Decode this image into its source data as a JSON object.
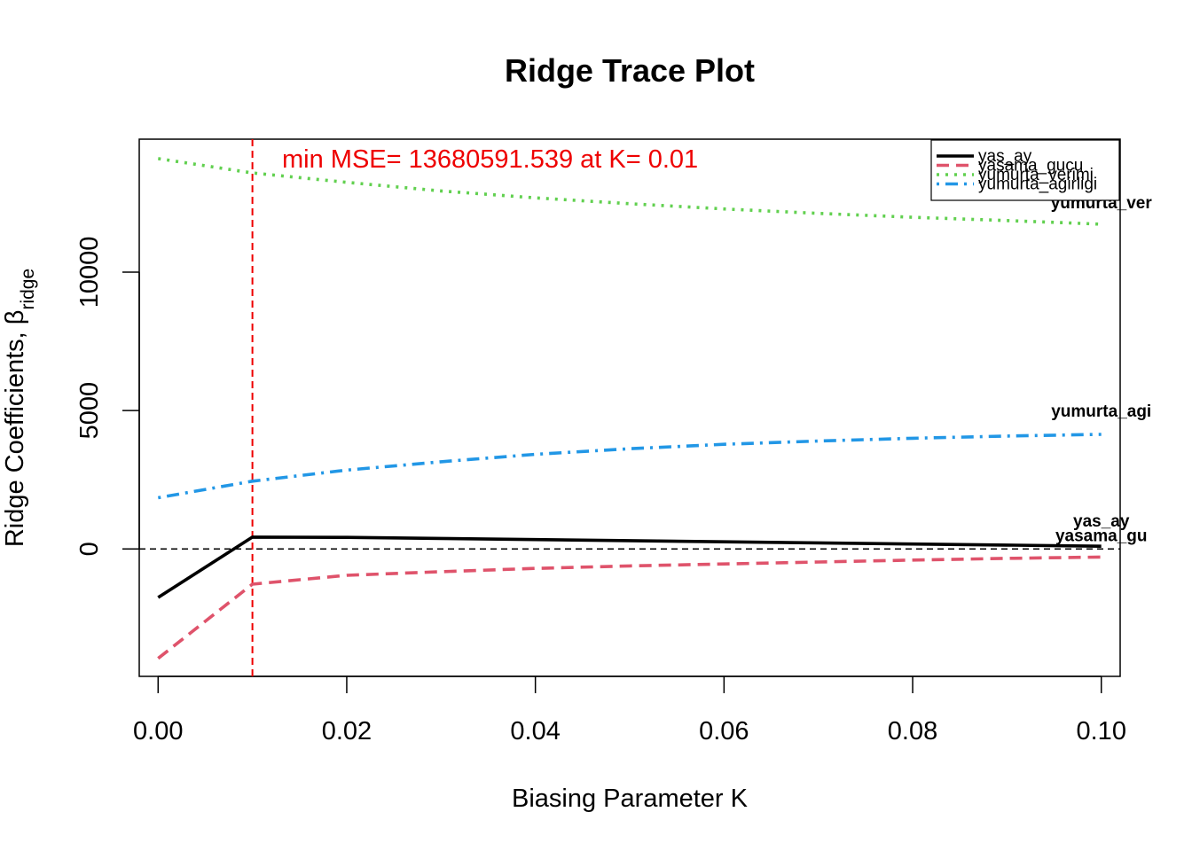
{
  "chart_data": {
    "type": "line",
    "title": "Ridge Trace Plot",
    "xlabel": "Biasing Parameter K",
    "ylabel_main": "Ridge Coefficients, ",
    "ylabel_beta": "β",
    "ylabel_sub": "ridge",
    "xlim": [
      -0.002,
      0.102
    ],
    "ylim": [
      -4600,
      14800
    ],
    "x_ticks": [
      0.0,
      0.02,
      0.04,
      0.06,
      0.08,
      0.1
    ],
    "x_tick_labels": [
      "0.00",
      "0.02",
      "0.04",
      "0.06",
      "0.08",
      "0.10"
    ],
    "y_ticks": [
      0,
      5000,
      10000
    ],
    "y_tick_labels": [
      "0",
      "5000",
      "10000"
    ],
    "x": [
      0.0,
      0.01,
      0.02,
      0.03,
      0.04,
      0.05,
      0.06,
      0.07,
      0.08,
      0.09,
      0.1
    ],
    "series": [
      {
        "name": "yas_ay",
        "color": "#000000",
        "dash": "solid",
        "end_label": "yas_ay",
        "values": [
          -1750,
          430,
          420,
          380,
          340,
          300,
          260,
          220,
          180,
          140,
          100
        ]
      },
      {
        "name": "yasama_gucu",
        "color": "#df536b",
        "dash": "dashed",
        "end_label": "yasama_gu",
        "values": [
          -3950,
          -1270,
          -950,
          -820,
          -700,
          -610,
          -540,
          -470,
          -400,
          -340,
          -290
        ]
      },
      {
        "name": "yumurta_verimi",
        "color": "#61d04f",
        "dash": "dotted",
        "end_label": "yumurta_ver",
        "values": [
          14100,
          13580,
          13240,
          12930,
          12680,
          12470,
          12280,
          12120,
          11980,
          11860,
          11730
        ]
      },
      {
        "name": "yumurta_agirligi",
        "color": "#2297e6",
        "dash": "dotdash",
        "end_label": "yumurta_agi",
        "values": [
          1850,
          2450,
          2850,
          3150,
          3420,
          3620,
          3780,
          3900,
          4000,
          4080,
          4140
        ]
      }
    ],
    "reference_lines": {
      "horizontal_zero": {
        "y": 0,
        "color": "#000000",
        "dash": "dashed"
      },
      "vertical_min_mse": {
        "x": 0.01,
        "color": "#ee0000",
        "dash": "dashed"
      }
    },
    "annotation": "min MSE= 13680591.539 at K= 0.01",
    "legend_position": "top-right",
    "grid": false
  }
}
